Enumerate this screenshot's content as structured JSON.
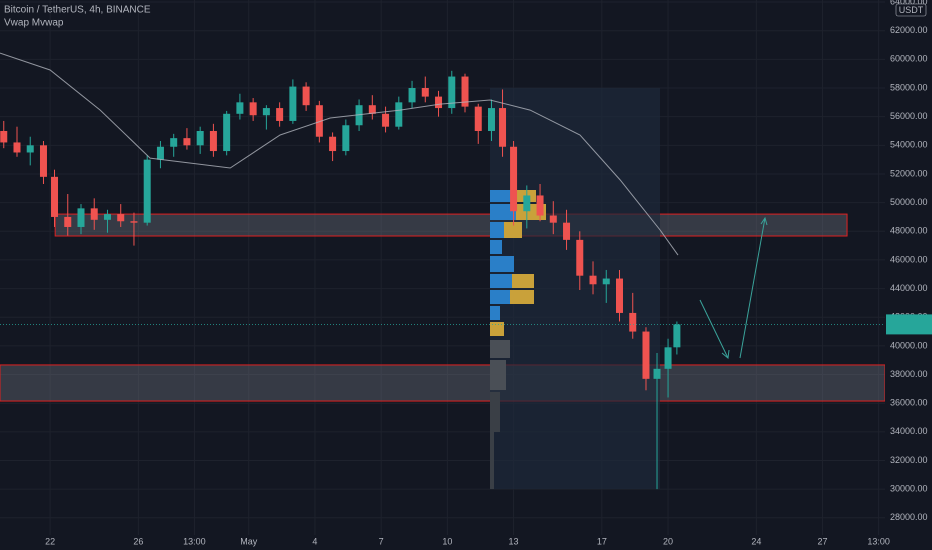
{
  "chart_data": {
    "type": "candlestick",
    "title": "Bitcoin / TetherUS, 4h, BINANCE",
    "currency": "USDT",
    "up_color": "#26a69a",
    "down_color": "#ef5350",
    "grid": true,
    "x": [
      19.9,
      20.5,
      21.1,
      21.7,
      22.2,
      22.8,
      23.4,
      24.0,
      24.6,
      25.2,
      25.8,
      26.4,
      27.0,
      27.6,
      28.2,
      28.8,
      29.4,
      30.0,
      30.6,
      31.2,
      31.8,
      32.4,
      33.0,
      33.6,
      34.2,
      34.8,
      35.4,
      36.0,
      36.6,
      37.2,
      37.8,
      38.4,
      39.0,
      39.6,
      40.2,
      40.8,
      41.4,
      42.0,
      42.5,
      43.0,
      43.6,
      44.2,
      44.8,
      45.4,
      46.0,
      46.6,
      47.2,
      47.8,
      48.4,
      49.0,
      49.5,
      50.0,
      50.4
    ],
    "open": [
      55000,
      54200,
      53500,
      54000,
      51800,
      49000,
      48300,
      49600,
      48800,
      49200,
      48700,
      48600,
      53000,
      53900,
      54500,
      54000,
      55000,
      53600,
      56200,
      57000,
      56100,
      56600,
      55700,
      58100,
      56800,
      54600,
      53600,
      55400,
      56800,
      56200,
      55300,
      57000,
      58000,
      57400,
      56600,
      58800,
      56700,
      55000,
      56600,
      53900,
      49400,
      50500,
      49100,
      48600,
      47400,
      44900,
      44300,
      44700,
      42300,
      41000,
      37700,
      38400,
      39900
    ],
    "high": [
      55700,
      55300,
      54600,
      54300,
      52300,
      50600,
      49900,
      50300,
      49500,
      49900,
      49300,
      53300,
      54300,
      54800,
      55200,
      55300,
      55500,
      56400,
      57600,
      57300,
      56800,
      57000,
      58600,
      58400,
      57100,
      54900,
      55800,
      57200,
      57500,
      56700,
      57400,
      58500,
      58800,
      57800,
      59200,
      59000,
      56900,
      57200,
      57900,
      54300,
      51200,
      51300,
      50100,
      49500,
      48000,
      45900,
      45300,
      45300,
      43700,
      41300,
      39500,
      40500,
      41700
    ],
    "low": [
      53800,
      53200,
      52600,
      51300,
      48300,
      47700,
      47800,
      48100,
      47900,
      48300,
      47000,
      48400,
      52400,
      53200,
      53700,
      53400,
      53200,
      53300,
      55800,
      55700,
      55100,
      55300,
      55500,
      56400,
      54200,
      52900,
      53300,
      55000,
      55800,
      54900,
      55100,
      56600,
      57000,
      56000,
      56200,
      56300,
      54100,
      54300,
      53200,
      48400,
      48200,
      48700,
      47800,
      46700,
      43900,
      43600,
      43000,
      41700,
      40500,
      36900,
      30000,
      36400,
      39400
    ],
    "close": [
      54200,
      53500,
      54000,
      51800,
      49000,
      48300,
      49600,
      48800,
      49200,
      48700,
      48600,
      53000,
      53900,
      54500,
      54000,
      55000,
      53600,
      56200,
      57000,
      56100,
      56600,
      55700,
      58100,
      56800,
      54600,
      53600,
      55400,
      56800,
      56200,
      55300,
      57000,
      58000,
      57400,
      56600,
      58800,
      56700,
      55000,
      56600,
      53900,
      49400,
      50500,
      49100,
      48600,
      47400,
      44900,
      44300,
      44700,
      42300,
      41000,
      37700,
      38400,
      39900,
      41500
    ],
    "indicator": {
      "name": "Vwap Mvwap",
      "color": "#b2b5be",
      "x": [
        19.73,
        22.0,
        24.27,
        26.53,
        30.16,
        32.42,
        34.69,
        37.86,
        39.67,
        41.93,
        43.75,
        46.01,
        47.83,
        49.64,
        50.45
      ],
      "values": [
        60440,
        59260,
        56460,
        53110,
        52420,
        54720,
        55910,
        56460,
        56880,
        57160,
        56460,
        54720,
        51580,
        48090,
        46340
      ]
    },
    "zones": [
      {
        "x": [
          22.23,
          58.11
        ],
        "low": 47670,
        "high": 49200
      },
      {
        "x": [
          19.73,
          59.83
        ],
        "low": 36150,
        "high": 38670
      }
    ],
    "xlim": [
      19.73,
      59.83
    ],
    "ylim": [
      26800,
      64143
    ],
    "xticks": [
      {
        "value": 22,
        "label": "22"
      },
      {
        "value": 26,
        "label": "26"
      },
      {
        "value": 28.54,
        "label": "13:00"
      },
      {
        "value": 31,
        "label": "May"
      },
      {
        "value": 34,
        "label": "4"
      },
      {
        "value": 37,
        "label": "7"
      },
      {
        "value": 40,
        "label": "10"
      },
      {
        "value": 43,
        "label": "13"
      },
      {
        "value": 47,
        "label": "17"
      },
      {
        "value": 50,
        "label": "20"
      },
      {
        "value": 54,
        "label": "24"
      },
      {
        "value": 57,
        "label": "27"
      },
      {
        "value": 59.54,
        "label": "13:00"
      }
    ],
    "yticks": [
      {
        "value": 28000,
        "label": "28000.00"
      },
      {
        "value": 30000,
        "label": "30000.00"
      },
      {
        "value": 32000,
        "label": "32000.00"
      },
      {
        "value": 34000,
        "label": "34000.00"
      },
      {
        "value": 36000,
        "label": "36000.00"
      },
      {
        "value": 38000,
        "label": "38000.00"
      },
      {
        "value": 40000,
        "label": "40000.00"
      },
      {
        "value": 42000,
        "label": "42000.00"
      },
      {
        "value": 44000,
        "label": "44000.00"
      },
      {
        "value": 46000,
        "label": "46000.00"
      },
      {
        "value": 48000,
        "label": "48000.00"
      },
      {
        "value": 50000,
        "label": "50000.00"
      },
      {
        "value": 52000,
        "label": "52000.00"
      },
      {
        "value": 54000,
        "label": "54000.00"
      },
      {
        "value": 56000,
        "label": "56000.00"
      },
      {
        "value": 58000,
        "label": "58000.00"
      },
      {
        "value": 60000,
        "label": "60000.00"
      },
      {
        "value": 62000,
        "label": "62000.00"
      },
      {
        "value": 64000,
        "label": "64000.00"
      }
    ]
  }
}
